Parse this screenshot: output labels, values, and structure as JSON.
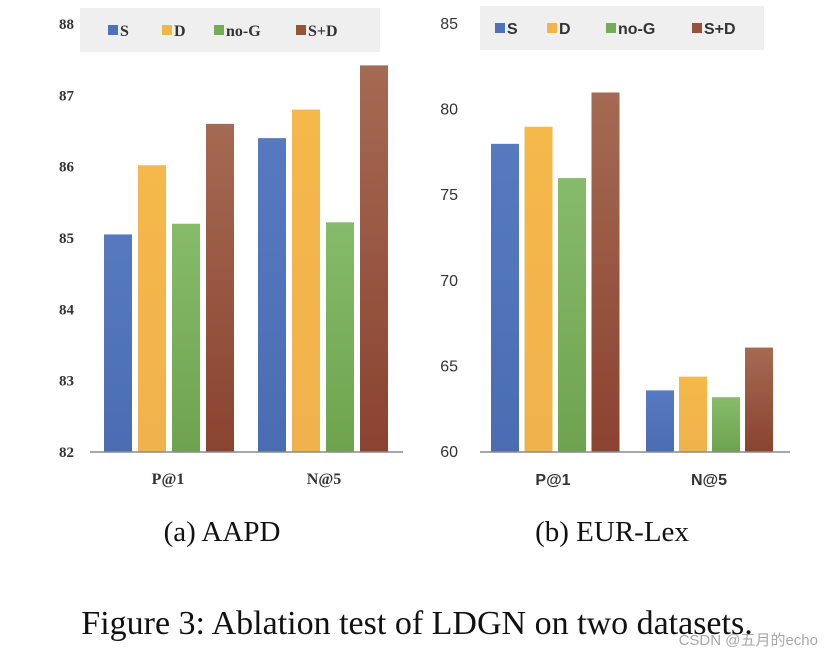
{
  "figure": {
    "caption": "Figure 3: Ablation test of LDGN on two datasets.",
    "watermark": "CSDN @五月的echo"
  },
  "colors": {
    "S": "#4e72b8",
    "D": "#f2b54b",
    "no-G": "#76ab57",
    "S+D": "#97523a",
    "axis": "#8a8a8a",
    "legend_bg": "#efefef"
  },
  "chart_data": [
    {
      "type": "bar",
      "subcaption": "(a)  AAPD",
      "categories": [
        "P@1",
        "N@5"
      ],
      "series": [
        {
          "name": "S",
          "values": [
            85.05,
            86.4
          ]
        },
        {
          "name": "D",
          "values": [
            86.02,
            86.8
          ]
        },
        {
          "name": "no-G",
          "values": [
            85.2,
            85.22
          ]
        },
        {
          "name": "S+D",
          "values": [
            86.6,
            87.42
          ]
        }
      ],
      "ylim": [
        82,
        88
      ],
      "yticks": [
        82,
        83,
        84,
        85,
        86,
        87,
        88
      ],
      "xlabel": "",
      "ylabel": "",
      "legend": "top",
      "grid": false
    },
    {
      "type": "bar",
      "subcaption": "(b)  EUR-Lex",
      "categories": [
        "P@1",
        "N@5"
      ],
      "series": [
        {
          "name": "S",
          "values": [
            78.0,
            63.6
          ]
        },
        {
          "name": "D",
          "values": [
            79.0,
            64.4
          ]
        },
        {
          "name": "no-G",
          "values": [
            76.0,
            63.2
          ]
        },
        {
          "name": "S+D",
          "values": [
            81.0,
            66.1
          ]
        }
      ],
      "ylim": [
        60,
        85
      ],
      "yticks": [
        60,
        65,
        70,
        75,
        80,
        85
      ],
      "xlabel": "",
      "ylabel": "",
      "legend": "top",
      "grid": false
    }
  ]
}
